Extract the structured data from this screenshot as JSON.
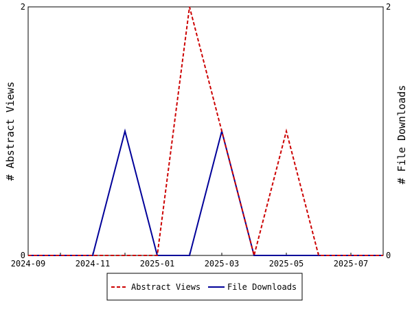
{
  "chart_data": {
    "type": "line",
    "title": "",
    "x": [
      "2024-09",
      "2024-10",
      "2024-11",
      "2024-12",
      "2025-01",
      "2025-02",
      "2025-03",
      "2025-04",
      "2025-05",
      "2025-06",
      "2025-07",
      "2025-08"
    ],
    "xticks": [
      "2024-09",
      "2024-11",
      "2025-01",
      "2025-03",
      "2025-05",
      "2025-07"
    ],
    "ylabel_left": "# Abstract Views",
    "ylabel_right": "# File Downloads",
    "ylim_left": [
      0,
      2
    ],
    "ylim_right": [
      0,
      2
    ],
    "yticks_left": [
      "0",
      "2"
    ],
    "yticks_right": [
      "0",
      "2"
    ],
    "grid": false,
    "legend_position": "bottom",
    "series": [
      {
        "name": "Abstract Views",
        "axis": "left",
        "color": "#cc0000",
        "dash": "dashed",
        "values": [
          0,
          0,
          0,
          0,
          0,
          2,
          1,
          0,
          1,
          0,
          0,
          0
        ]
      },
      {
        "name": "File Downloads",
        "axis": "right",
        "color": "#000099",
        "dash": "solid",
        "values": [
          0,
          0,
          0,
          1,
          0,
          0,
          1,
          0,
          0,
          0,
          0,
          0
        ]
      }
    ]
  }
}
